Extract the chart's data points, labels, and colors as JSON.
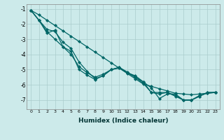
{
  "xlabel": "Humidex (Indice chaleur)",
  "ylabel": "",
  "bg_color": "#cceaea",
  "line_color": "#006666",
  "grid_color": "#aacccc",
  "xlim": [
    -0.5,
    23.5
  ],
  "ylim": [
    -7.6,
    -0.7
  ],
  "yticks": [
    -7,
    -6,
    -5,
    -4,
    -3,
    -2,
    -1
  ],
  "xticks": [
    0,
    1,
    2,
    3,
    4,
    5,
    6,
    7,
    8,
    9,
    10,
    11,
    12,
    13,
    14,
    15,
    16,
    17,
    18,
    19,
    20,
    21,
    22,
    23
  ],
  "series": [
    {
      "x": [
        0,
        1,
        2,
        3,
        4,
        5,
        6,
        7,
        8,
        9,
        10,
        11,
        12,
        13,
        14,
        15,
        16,
        17,
        18,
        19,
        20,
        21,
        22,
        23
      ],
      "y": [
        -1.1,
        -1.4,
        -1.75,
        -2.1,
        -2.45,
        -2.8,
        -3.15,
        -3.5,
        -3.85,
        -4.2,
        -4.55,
        -4.9,
        -5.25,
        -5.6,
        -5.95,
        -6.1,
        -6.25,
        -6.4,
        -6.55,
        -6.6,
        -6.65,
        -6.6,
        -6.55,
        -6.5
      ]
    },
    {
      "x": [
        0,
        1,
        2,
        3,
        4,
        5,
        6,
        7,
        8,
        9,
        10,
        11,
        12,
        13,
        14,
        15,
        16,
        17,
        18,
        19,
        20,
        21,
        22,
        23
      ],
      "y": [
        -1.1,
        -1.75,
        -2.5,
        -3.0,
        -3.5,
        -4.0,
        -4.8,
        -5.2,
        -5.5,
        -5.3,
        -5.0,
        -4.9,
        -5.2,
        -5.4,
        -5.8,
        -6.2,
        -6.9,
        -6.6,
        -6.6,
        -7.0,
        -7.0,
        -6.7,
        -6.55,
        -6.5
      ]
    },
    {
      "x": [
        0,
        1,
        2,
        3,
        4,
        5,
        6,
        7,
        8,
        9,
        10,
        11,
        12,
        13,
        14,
        15,
        16,
        17,
        18,
        19,
        20,
        21,
        22,
        23
      ],
      "y": [
        -1.1,
        -1.75,
        -2.35,
        -2.5,
        -3.2,
        -3.6,
        -4.5,
        -5.1,
        -5.6,
        -5.4,
        -5.0,
        -4.85,
        -5.2,
        -5.5,
        -5.8,
        -6.5,
        -6.6,
        -6.5,
        -6.7,
        -7.0,
        -7.0,
        -6.75,
        -6.5,
        -6.5
      ]
    },
    {
      "x": [
        0,
        1,
        2,
        3,
        4,
        5,
        6,
        7,
        8,
        9,
        10,
        11,
        12,
        13,
        14,
        15,
        16,
        17,
        18,
        19,
        20,
        21,
        22,
        23
      ],
      "y": [
        -1.1,
        -1.75,
        -2.6,
        -2.4,
        -3.5,
        -3.8,
        -5.0,
        -5.35,
        -5.65,
        -5.4,
        -5.0,
        -4.85,
        -5.15,
        -5.5,
        -5.9,
        -6.5,
        -6.5,
        -6.5,
        -6.75,
        -7.0,
        -7.0,
        -6.75,
        -6.5,
        -6.5
      ]
    }
  ]
}
